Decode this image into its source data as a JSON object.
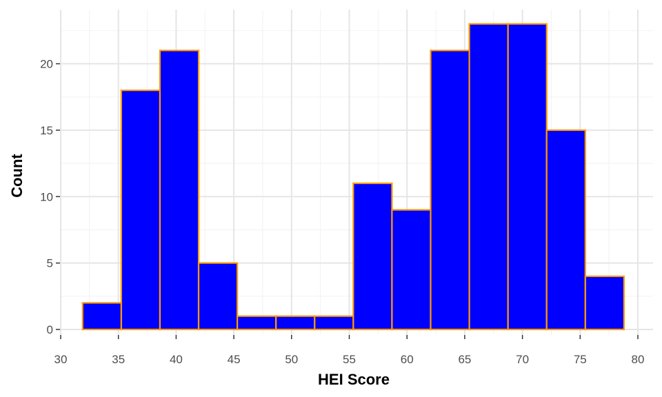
{
  "chart_data": {
    "type": "histogram",
    "xlabel": "HEI Score",
    "ylabel": "Count",
    "xlim": [
      30,
      80
    ],
    "ylim": [
      0,
      24
    ],
    "x_ticks": [
      30,
      35,
      40,
      45,
      50,
      55,
      60,
      65,
      70,
      75,
      80
    ],
    "y_ticks": [
      0,
      5,
      10,
      15,
      20
    ],
    "grid": true,
    "bins": [
      {
        "x0": 31.9,
        "x1": 35.25,
        "count": 2
      },
      {
        "x0": 35.25,
        "x1": 38.6,
        "count": 18
      },
      {
        "x0": 38.6,
        "x1": 41.95,
        "count": 21
      },
      {
        "x0": 41.95,
        "x1": 45.3,
        "count": 5
      },
      {
        "x0": 45.3,
        "x1": 48.65,
        "count": 1
      },
      {
        "x0": 48.65,
        "x1": 52.0,
        "count": 1
      },
      {
        "x0": 52.0,
        "x1": 55.35,
        "count": 1
      },
      {
        "x0": 55.35,
        "x1": 58.7,
        "count": 11
      },
      {
        "x0": 58.7,
        "x1": 62.05,
        "count": 9
      },
      {
        "x0": 62.05,
        "x1": 65.4,
        "count": 21
      },
      {
        "x0": 65.4,
        "x1": 68.75,
        "count": 23
      },
      {
        "x0": 68.75,
        "x1": 72.1,
        "count": 23
      },
      {
        "x0": 72.1,
        "x1": 75.45,
        "count": 15
      },
      {
        "x0": 75.45,
        "x1": 78.8,
        "count": 4
      }
    ],
    "colors": {
      "bar_fill": "#0000ff",
      "bar_outline": "#ff9900",
      "grid_major": "#e5e5e5",
      "grid_minor": "#f2f2f2",
      "tick_label": "#4d4d4d"
    }
  }
}
